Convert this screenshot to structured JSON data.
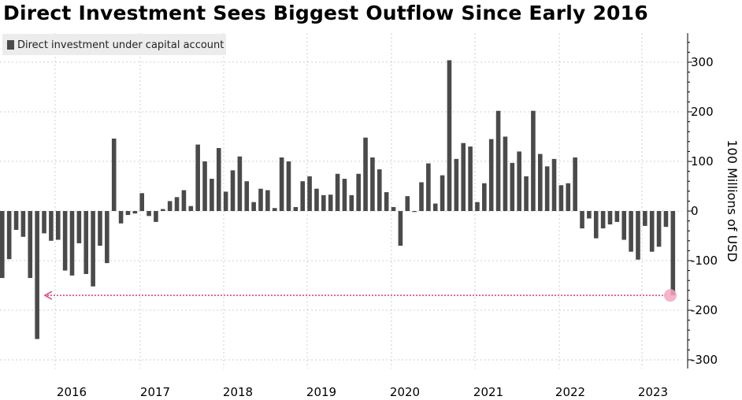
{
  "title": "Direct Investment Sees Biggest Outflow Since Early 2016",
  "chart_data": {
    "type": "bar",
    "x_year_labels": [
      "2016",
      "2017",
      "2018",
      "2019",
      "2020",
      "2021",
      "2022",
      "2023"
    ],
    "ylabel": "100 Millions of USD",
    "ylim": [
      -320,
      350
    ],
    "y_ticks": [
      300,
      200,
      100,
      0,
      -100,
      -200,
      -300
    ],
    "grid": true,
    "series": [
      {
        "name": "Direct investment under capital account",
        "color": "#4a4a4a",
        "values": [
          -135,
          -97,
          -38,
          -52,
          -135,
          -258,
          -45,
          -60,
          -58,
          -120,
          -130,
          -65,
          -127,
          -152,
          -70,
          -105,
          146,
          -25,
          -8,
          -5,
          36,
          -10,
          -22,
          4,
          20,
          28,
          42,
          10,
          134,
          100,
          65,
          127,
          39,
          82,
          110,
          60,
          18,
          45,
          42,
          6,
          108,
          100,
          8,
          60,
          70,
          45,
          32,
          33,
          75,
          65,
          32,
          75,
          148,
          108,
          84,
          38,
          8,
          -70,
          30,
          -2,
          58,
          96,
          15,
          72,
          304,
          105,
          137,
          130,
          18,
          56,
          145,
          202,
          150,
          97,
          120,
          70,
          202,
          115,
          90,
          105,
          52,
          56,
          108,
          -35,
          -15,
          -55,
          -35,
          -27,
          -22,
          -58,
          -82,
          -98,
          -30,
          -82,
          -72,
          -32,
          -170
        ]
      }
    ],
    "annotation": {
      "type": "reference-line",
      "value": -170,
      "color": "#e23b6e",
      "legend_position": "top-left"
    }
  }
}
